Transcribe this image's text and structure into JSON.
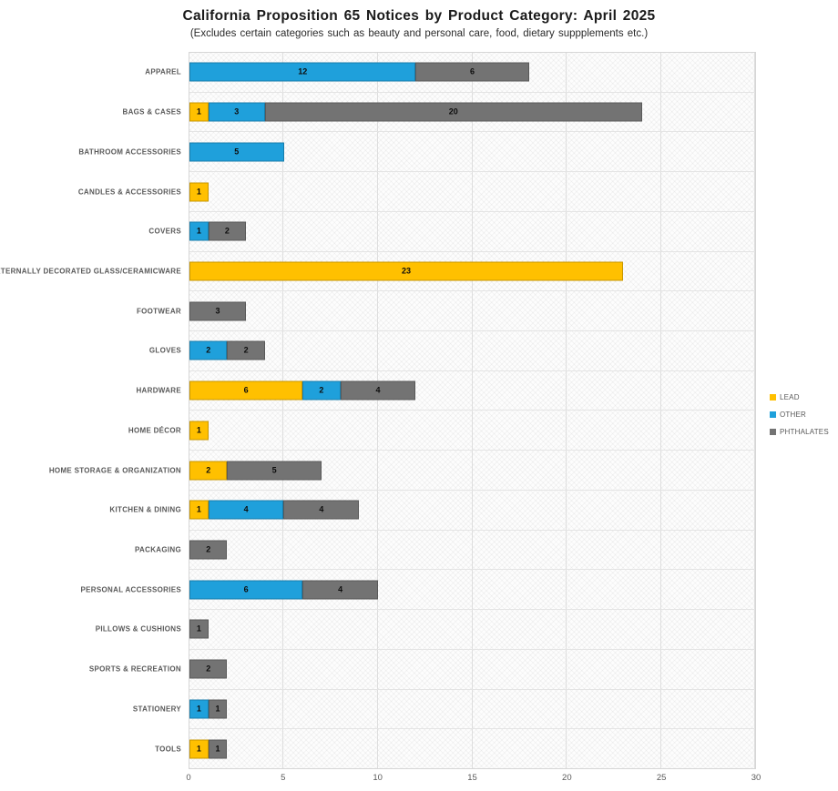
{
  "title": "California Proposition 65 Notices by Product Category: April 2025",
  "subtitle": "(Excludes certain categories such as beauty and personal care, food, dietary suppplements etc.)",
  "chart_data": {
    "type": "bar",
    "orientation": "horizontal",
    "stacked": true,
    "title": "California Proposition 65 Notices by Product Category: April 2025",
    "subtitle": "(Excludes certain categories such as beauty and personal care, food, dietary suppplements etc.)",
    "categories": [
      "APPAREL",
      "BAGS & CASES",
      "BATHROOM ACCESSORIES",
      "CANDLES & ACCESSORIES",
      "COVERS",
      "EXTERNALLY DECORATED GLASS/CERAMICWARE",
      "FOOTWEAR",
      "GLOVES",
      "HARDWARE",
      "HOME DÉCOR",
      "HOME STORAGE & ORGANIZATION",
      "KITCHEN & DINING",
      "PACKAGING",
      "PERSONAL ACCESSORIES",
      "PILLOWS & CUSHIONS",
      "SPORTS & RECREATION",
      "STATIONERY",
      "TOOLS"
    ],
    "series": [
      {
        "name": "LEAD",
        "color": "#FFC000",
        "values": [
          0,
          1,
          0,
          1,
          0,
          23,
          0,
          0,
          6,
          1,
          2,
          1,
          0,
          0,
          0,
          0,
          0,
          1
        ]
      },
      {
        "name": "OTHER",
        "color": "#1FA0DB",
        "values": [
          12,
          3,
          5,
          0,
          1,
          0,
          0,
          2,
          2,
          0,
          0,
          4,
          0,
          6,
          0,
          0,
          1,
          0
        ]
      },
      {
        "name": "PHTHALATES",
        "color": "#737373",
        "values": [
          6,
          20,
          0,
          0,
          2,
          0,
          3,
          2,
          4,
          0,
          5,
          4,
          2,
          4,
          1,
          2,
          1,
          1
        ]
      }
    ],
    "xlim": [
      0,
      30
    ],
    "xticks": [
      0,
      5,
      10,
      15,
      20,
      25,
      30
    ],
    "grid": true,
    "legend_position": "right",
    "value_labels": "inside-center"
  }
}
